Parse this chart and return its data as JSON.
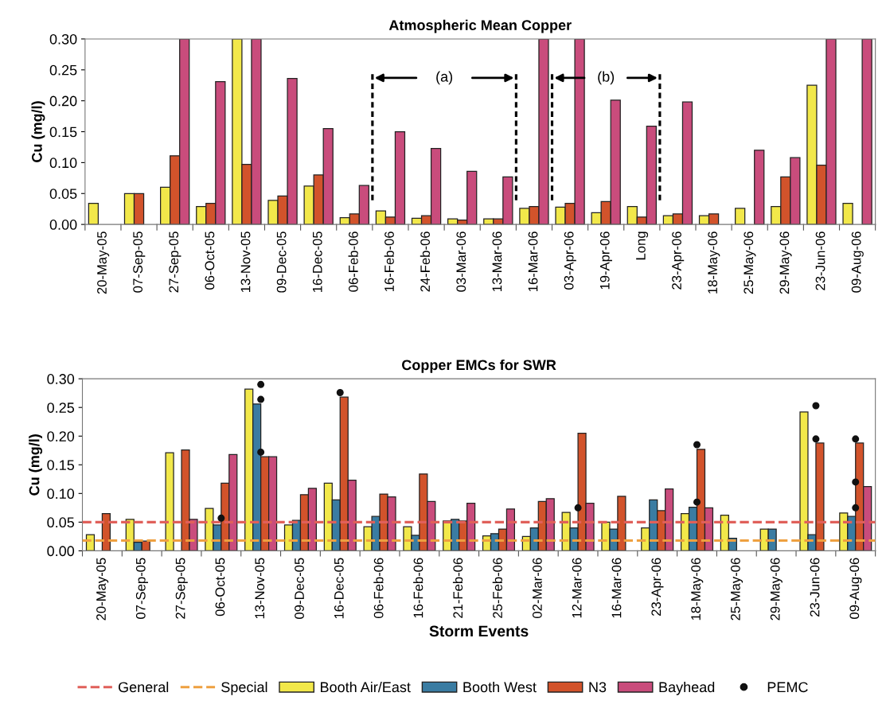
{
  "chart_data": [
    {
      "type": "bar",
      "title": "Atmospheric Mean Copper",
      "ylabel": "Cu (mg/l)",
      "categories": [
        "20-May-05",
        "07-Sep-05",
        "27-Sep-05",
        "06-Oct-05",
        "13-Nov-05",
        "09-Dec-05",
        "16-Dec-05",
        "06-Feb-06",
        "16-Feb-06",
        "24-Feb-06",
        "03-Mar-06",
        "13-Mar-06",
        "16-Mar-06",
        "03-Apr-06",
        "19-Apr-06",
        "Long",
        "23-Apr-06",
        "18-May-06",
        "25-May-06",
        "29-May-06",
        "23-Jun-06",
        "09-Aug-06"
      ],
      "series": [
        {
          "color": "#f2e84a",
          "values": [
            0.034,
            0.05,
            0.06,
            0.029,
            0.3,
            0.039,
            0.062,
            0.011,
            0.022,
            0.01,
            0.009,
            0.009,
            0.026,
            0.028,
            0.019,
            0.029,
            0.014,
            0.014,
            0.026,
            0.029,
            0.225,
            0.034
          ]
        },
        {
          "color": "#d2532b",
          "values": [
            null,
            0.05,
            0.111,
            0.034,
            0.097,
            0.046,
            0.08,
            0.017,
            0.012,
            0.014,
            0.007,
            0.009,
            0.029,
            0.034,
            0.037,
            0.012,
            0.017,
            0.017,
            null,
            0.077,
            0.096,
            null
          ]
        },
        {
          "color": "#c94c7c",
          "values": [
            null,
            null,
            0.3,
            0.231,
            0.3,
            0.236,
            0.155,
            0.063,
            0.15,
            0.123,
            0.086,
            0.077,
            0.3,
            0.3,
            0.201,
            0.159,
            0.198,
            null,
            0.12,
            0.108,
            0.3,
            0.3
          ]
        }
      ],
      "annotations": [
        "(a)",
        "(b)"
      ],
      "ylim": [
        0,
        0.3
      ],
      "yticks": [
        {
          "value": 0,
          "label": "0.00"
        },
        {
          "value": 0.05,
          "label": "0.05"
        },
        {
          "value": 0.1,
          "label": "0.10"
        },
        {
          "value": 0.15,
          "label": "0.15"
        },
        {
          "value": 0.2,
          "label": "0.20"
        },
        {
          "value": 0.25,
          "label": "0.25"
        },
        {
          "value": 0.3,
          "label": "0.30"
        }
      ],
      "grid": false,
      "legend": false
    },
    {
      "type": "bar",
      "title": "Copper EMCs for SWR",
      "ylabel": "Cu (mg/l)",
      "xlabel": "Storm Events",
      "categories": [
        "20-May-05",
        "07-Sep-05",
        "27-Sep-05",
        "06-Oct-05",
        "13-Nov-05",
        "09-Dec-05",
        "16-Dec-05",
        "06-Feb-06",
        "16-Feb-06",
        "21-Feb-06",
        "25-Feb-06",
        "02-Mar-06",
        "12-Mar-06",
        "16-Mar-06",
        "23-Apr-06",
        "18-May-06",
        "25-May-06",
        "29-May-06",
        "23-Jun-06",
        "09-Aug-06"
      ],
      "series": [
        {
          "name": "Booth Air/East",
          "color": "#f2e84a",
          "values": [
            0.028,
            0.055,
            0.171,
            0.074,
            0.282,
            0.045,
            0.118,
            0.042,
            0.042,
            0.052,
            0.026,
            0.025,
            0.067,
            0.05,
            0.04,
            0.065,
            0.062,
            0.038,
            0.242,
            0.066
          ]
        },
        {
          "name": "Booth West",
          "color": "#3a7ca2",
          "values": [
            null,
            0.015,
            null,
            0.045,
            0.256,
            0.053,
            0.089,
            0.06,
            0.027,
            0.055,
            0.03,
            0.04,
            0.04,
            0.038,
            0.089,
            0.076,
            0.022,
            0.038,
            0.028,
            0.06
          ]
        },
        {
          "name": "N3",
          "color": "#d2532b",
          "values": [
            0.065,
            0.017,
            0.176,
            0.118,
            0.164,
            0.098,
            0.268,
            0.099,
            0.134,
            0.052,
            0.038,
            0.086,
            0.205,
            0.095,
            0.07,
            0.177,
            null,
            null,
            0.188,
            0.188
          ]
        },
        {
          "name": "Bayhead",
          "color": "#c94c7c",
          "values": [
            null,
            null,
            0.055,
            0.168,
            0.164,
            0.109,
            0.123,
            0.094,
            0.086,
            0.083,
            0.073,
            0.091,
            0.083,
            null,
            0.108,
            0.075,
            null,
            null,
            null,
            0.112
          ]
        },
        {
          "name": "PEMC",
          "type": "scatter",
          "color": "#111111",
          "marker": "circle",
          "x": [
            "06-Oct-05",
            "13-Nov-05",
            "13-Nov-05",
            "13-Nov-05",
            "16-Dec-05",
            "12-Mar-06",
            "18-May-06",
            "18-May-06",
            "23-Jun-06",
            "23-Jun-06",
            "09-Aug-06",
            "09-Aug-06",
            "09-Aug-06"
          ],
          "values": [
            0.057,
            0.29,
            0.264,
            0.172,
            0.276,
            0.075,
            0.185,
            0.085,
            0.253,
            0.195,
            0.075,
            0.195,
            0.12
          ]
        }
      ],
      "ref_lines": [
        {
          "axis": "y",
          "value": 0.05,
          "label": "General",
          "color": "#e0605a",
          "line_style": "dashed"
        },
        {
          "axis": "y",
          "value": 0.018,
          "label": "Special",
          "color": "#eea040",
          "line_style": "dashed"
        }
      ],
      "ylim": [
        0,
        0.3
      ],
      "yticks": [
        {
          "value": 0,
          "label": "0.00"
        },
        {
          "value": 0.05,
          "label": "0.05"
        },
        {
          "value": 0.1,
          "label": "0.10"
        },
        {
          "value": 0.15,
          "label": "0.15"
        },
        {
          "value": 0.2,
          "label": "0.20"
        },
        {
          "value": 0.25,
          "label": "0.25"
        },
        {
          "value": 0.3,
          "label": "0.30"
        }
      ],
      "grid": false,
      "legend": "bottom"
    }
  ]
}
